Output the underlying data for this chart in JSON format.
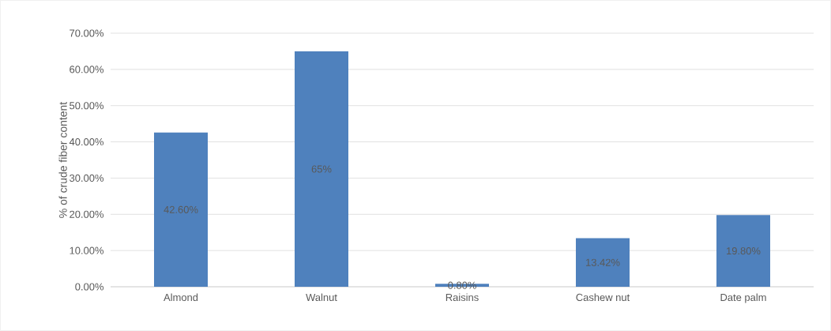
{
  "chart_data": {
    "type": "bar",
    "ylabel": "% of crude fiber content",
    "categories": [
      "Almond",
      "Walnut",
      "Raisins",
      "Cashew nut",
      "Date palm"
    ],
    "values": [
      42.6,
      65,
      0.8,
      13.42,
      19.8
    ],
    "value_labels": [
      "42.60%",
      "65%",
      "0.80%",
      "13.42%",
      "19.80%"
    ],
    "color": "#4f81bd",
    "ylim": [
      0,
      70
    ],
    "yticks": [
      {
        "value": 0,
        "label": "0.00%"
      },
      {
        "value": 10,
        "label": "10.00%"
      },
      {
        "value": 20,
        "label": "20.00%"
      },
      {
        "value": 30,
        "label": "30.00%"
      },
      {
        "value": 40,
        "label": "40.00%"
      },
      {
        "value": 50,
        "label": "50.00%"
      },
      {
        "value": 60,
        "label": "60.00%"
      },
      {
        "value": 70,
        "label": "70.00%"
      }
    ],
    "grid": "y"
  }
}
